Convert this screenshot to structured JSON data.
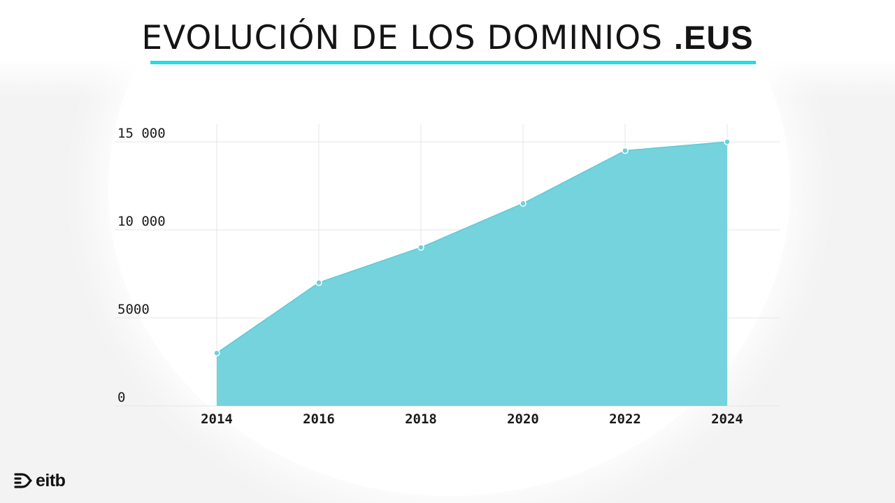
{
  "title": {
    "main": "EVOLUCIÓN DE LOS DOMINIOS",
    "emphasis": ".EUS"
  },
  "colors": {
    "accent_line": "#23dde6",
    "area_fill": "#74d3dc",
    "area_stroke": "#5fcad5",
    "point": "#6cd0da",
    "grid": "#e6e6e6",
    "text": "#141414"
  },
  "chart_data": {
    "type": "area",
    "title": "EVOLUCIÓN DE LOS DOMINIOS .EUS",
    "xlabel": "",
    "ylabel": "",
    "x": [
      2014,
      2016,
      2018,
      2020,
      2022,
      2024
    ],
    "x_tick_labels": [
      "2014",
      "2016",
      "2018",
      "2020",
      "2022",
      "2024"
    ],
    "y": [
      3000,
      7000,
      9000,
      11500,
      14500,
      15000
    ],
    "y_ticks": [
      0,
      5000,
      10000,
      15000
    ],
    "y_tick_labels": [
      "0",
      "5000",
      "10 000",
      "15 000"
    ],
    "ylim": [
      0,
      15000
    ],
    "grid": true,
    "legend": "none"
  },
  "logo": {
    "text": "eitb",
    "icon": "eitb-arrows-icon"
  }
}
